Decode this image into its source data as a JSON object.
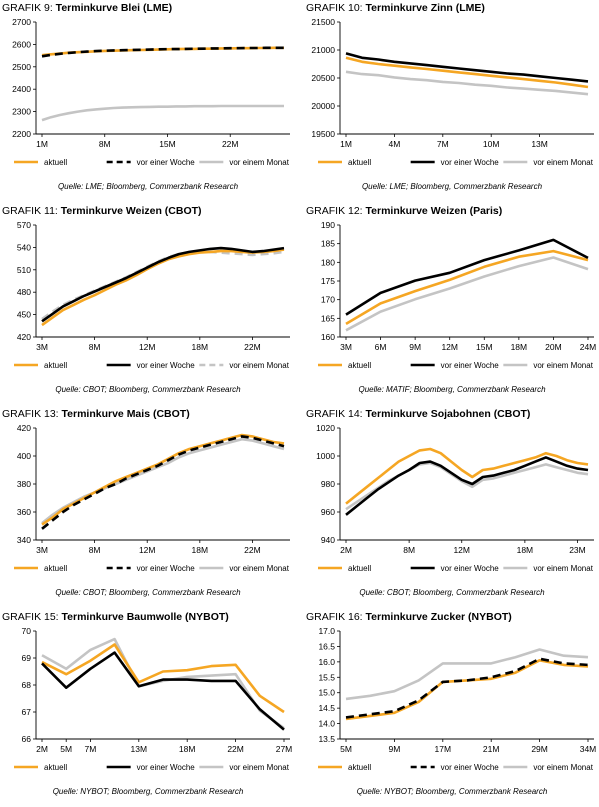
{
  "chart_data": [
    {
      "type": "line",
      "number": "GRAFIK 9:",
      "title": "Terminkurve Blei (LME)",
      "x": [
        "1M",
        "",
        "",
        "",
        "",
        "",
        "",
        "8M",
        "",
        "",
        "",
        "",
        "",
        "",
        "15M",
        "",
        "",
        "",
        "",
        "",
        "",
        "22M",
        "",
        "",
        "",
        "",
        "",
        ""
      ],
      "ylim": [
        2200,
        2700
      ],
      "yticks": [
        "2200",
        "2300",
        "2400",
        "2500",
        "2600",
        "2700"
      ],
      "series": [
        {
          "name": "aktuell",
          "color": "#f5a623",
          "dash": "solid",
          "values": [
            2552,
            2556,
            2559,
            2563,
            2565,
            2567,
            2569,
            2571,
            2572,
            2573,
            2574,
            2575,
            2576,
            2577,
            2578,
            2579,
            2580,
            2580,
            2581,
            2581,
            2582,
            2582,
            2583,
            2583,
            2584,
            2584,
            2585,
            2585
          ]
        },
        {
          "name": "vor einer Woche",
          "color": "#000000",
          "dash": "dashed",
          "values": [
            2547,
            2553,
            2558,
            2562,
            2565,
            2568,
            2570,
            2572,
            2573,
            2574,
            2575,
            2576,
            2577,
            2578,
            2579,
            2579,
            2580,
            2581,
            2581,
            2582,
            2582,
            2583,
            2583,
            2584,
            2584,
            2585,
            2585,
            2585
          ]
        },
        {
          "name": "vor einem Monat",
          "color": "#c4c4c4",
          "dash": "solid",
          "values": [
            2262,
            2275,
            2285,
            2293,
            2300,
            2306,
            2310,
            2313,
            2316,
            2318,
            2319,
            2320,
            2321,
            2322,
            2322,
            2323,
            2323,
            2324,
            2324,
            2324,
            2325,
            2325,
            2325,
            2325,
            2325,
            2325,
            2325,
            2325
          ]
        }
      ],
      "source": "Quelle: LME; Bloomberg, Commerzbank Research"
    },
    {
      "type": "line",
      "number": "GRAFIK 10:",
      "title": "Terminkurve Zinn (LME)",
      "x": [
        "1M",
        "",
        "",
        "4M",
        "",
        "",
        "7M",
        "",
        "",
        "10M",
        "",
        "",
        "13M",
        "",
        "",
        ""
      ],
      "ylim": [
        19500,
        21500
      ],
      "yticks": [
        "19500",
        "20000",
        "20500",
        "21000",
        "21500"
      ],
      "series": [
        {
          "name": "aktuell",
          "color": "#f5a623",
          "dash": "solid",
          "values": [
            20860,
            20790,
            20750,
            20720,
            20690,
            20660,
            20630,
            20600,
            20570,
            20540,
            20510,
            20480,
            20450,
            20420,
            20380,
            20340
          ]
        },
        {
          "name": "vor einer Woche",
          "color": "#000000",
          "dash": "solid",
          "values": [
            20940,
            20860,
            20830,
            20790,
            20760,
            20730,
            20700,
            20670,
            20640,
            20610,
            20580,
            20560,
            20530,
            20500,
            20470,
            20440
          ]
        },
        {
          "name": "vor einem Monat",
          "color": "#c4c4c4",
          "dash": "solid",
          "values": [
            20610,
            20570,
            20550,
            20510,
            20480,
            20460,
            20430,
            20410,
            20380,
            20360,
            20330,
            20310,
            20290,
            20270,
            20240,
            20210
          ]
        }
      ],
      "source": "Quelle: LME; Bloomberg, Commerzbank Research"
    },
    {
      "type": "line",
      "number": "GRAFIK 11:",
      "title": "Terminkurve Weizen (CBOT)",
      "x": [
        "3M",
        "",
        "",
        "",
        "",
        "8M",
        "",
        "",
        "",
        "",
        "12M",
        "",
        "",
        "",
        "",
        "18M",
        "",
        "",
        "",
        "",
        "22M",
        "",
        "",
        ""
      ],
      "ylim": [
        420,
        570
      ],
      "yticks": [
        "420",
        "450",
        "480",
        "510",
        "540",
        "570"
      ],
      "series": [
        {
          "name": "aktuell",
          "color": "#f5a623",
          "dash": "solid",
          "values": [
            436,
            446,
            456,
            463,
            470,
            476,
            483,
            490,
            496,
            503,
            511,
            518,
            524,
            528,
            531,
            533,
            534,
            535,
            535,
            534,
            533,
            534,
            535,
            537
          ]
        },
        {
          "name": "vor einer Woche",
          "color": "#000000",
          "dash": "solid",
          "values": [
            441,
            451,
            461,
            468,
            475,
            481,
            487,
            493,
            499,
            506,
            513,
            520,
            526,
            531,
            534,
            536,
            538,
            539,
            538,
            536,
            534,
            535,
            537,
            539
          ]
        },
        {
          "name": "vor einem Monat",
          "color": "#c4c4c4",
          "dash": "dashed",
          "values": [
            444,
            454,
            463,
            470,
            476,
            482,
            488,
            494,
            500,
            507,
            514,
            521,
            527,
            531,
            533,
            534,
            534,
            533,
            532,
            531,
            530,
            531,
            532,
            534
          ]
        }
      ],
      "source": "Quelle: CBOT; Bloomberg, Commerzbank Research"
    },
    {
      "type": "line",
      "number": "GRAFIK 12:",
      "title": "Terminkurve Weizen (Paris)",
      "x": [
        "3M",
        "6M",
        "9M",
        "12M",
        "15M",
        "18M",
        "20M",
        "24M"
      ],
      "ylim": [
        160,
        190
      ],
      "yticks": [
        "160",
        "165",
        "170",
        "175",
        "180",
        "185",
        "190"
      ],
      "series": [
        {
          "name": "aktuell",
          "color": "#f5a623",
          "dash": "solid",
          "values": [
            163.5,
            169,
            172.3,
            175.3,
            178.8,
            181.5,
            183,
            180.6
          ]
        },
        {
          "name": "vor einer Woche",
          "color": "#000000",
          "dash": "solid",
          "values": [
            166,
            171.8,
            175.1,
            177.2,
            180.6,
            183.2,
            186,
            181.2
          ]
        },
        {
          "name": "vor einem Monat",
          "color": "#c4c4c4",
          "dash": "solid",
          "values": [
            161.8,
            166.8,
            170.1,
            173,
            176.2,
            179,
            181.3,
            178.2
          ]
        }
      ],
      "source": "Quelle: MATIF; Bloomberg, Commerzbank Research"
    },
    {
      "type": "line",
      "number": "GRAFIK 13:",
      "title": "Terminkurve Mais (CBOT)",
      "x": [
        "3M",
        "",
        "",
        "",
        "",
        "8M",
        "",
        "",
        "",
        "",
        "12M",
        "",
        "",
        "",
        "",
        "18M",
        "",
        "",
        "",
        "",
        "22M",
        "",
        "",
        ""
      ],
      "ylim": [
        340,
        420
      ],
      "yticks": [
        "340",
        "360",
        "380",
        "400",
        "420"
      ],
      "series": [
        {
          "name": "aktuell",
          "color": "#f5a623",
          "dash": "solid",
          "values": [
            351,
            356,
            362,
            366,
            370,
            374,
            378,
            382,
            385,
            388,
            391,
            394,
            398,
            402,
            405,
            407,
            409,
            411,
            413,
            415,
            414,
            412,
            410,
            409
          ]
        },
        {
          "name": "vor einer Woche",
          "color": "#000000",
          "dash": "dashed",
          "values": [
            348,
            354,
            360,
            365,
            369,
            373,
            377,
            380,
            384,
            387,
            390,
            393,
            397,
            401,
            404,
            406,
            408,
            410,
            412,
            414,
            413,
            411,
            409,
            407
          ]
        },
        {
          "name": "vor einem Monat",
          "color": "#c4c4c4",
          "dash": "solid",
          "values": [
            352,
            358,
            363,
            367,
            371,
            374,
            377,
            380,
            383,
            386,
            389,
            392,
            395,
            399,
            402,
            404,
            406,
            408,
            410,
            412,
            411,
            409,
            407,
            405
          ]
        }
      ],
      "source": "Quelle: CBOT; Bloomberg, Commerzbank Research"
    },
    {
      "type": "line",
      "number": "GRAFIK 14:",
      "title": "Terminkurve Sojabohnen (CBOT)",
      "x": [
        "2M",
        "",
        "",
        "",
        "",
        "",
        "8M",
        "",
        "",
        "",
        "",
        "12M",
        "",
        "",
        "",
        "",
        "",
        "18M",
        "",
        "",
        "",
        "",
        "23M",
        ""
      ],
      "ylim": [
        940,
        1020
      ],
      "yticks": [
        "940",
        "960",
        "980",
        "1000",
        "1020"
      ],
      "series": [
        {
          "name": "aktuell",
          "color": "#f5a623",
          "dash": "solid",
          "values": [
            966,
            972,
            978,
            984,
            990,
            996,
            1000,
            1004,
            1005,
            1002,
            996,
            990,
            985,
            990,
            991,
            993,
            995,
            997,
            999,
            1002,
            1000,
            997,
            995,
            994
          ]
        },
        {
          "name": "vor einer Woche",
          "color": "#000000",
          "dash": "solid",
          "values": [
            958,
            964,
            970,
            976,
            981,
            986,
            990,
            995,
            996,
            993,
            988,
            983,
            980,
            985,
            986,
            988,
            990,
            993,
            996,
            999,
            996,
            993,
            991,
            990
          ]
        },
        {
          "name": "vor einem Monat",
          "color": "#c4c4c4",
          "dash": "solid",
          "values": [
            962,
            967,
            972,
            977,
            982,
            986,
            990,
            994,
            995,
            992,
            987,
            982,
            978,
            983,
            984,
            986,
            988,
            990,
            992,
            994,
            992,
            990,
            988,
            987
          ]
        }
      ],
      "source": "Quelle: CBOT; Bloomberg, Commerzbank Research"
    },
    {
      "type": "line",
      "number": "GRAFIK 15:",
      "title": "Terminkurve Baumwolle (NYBOT)",
      "x": [
        "2M",
        "5M",
        "7M",
        "",
        "13M",
        "",
        "18M",
        "",
        "22M",
        "",
        "27M"
      ],
      "ylim": [
        66,
        70
      ],
      "yticks": [
        "66",
        "67",
        "68",
        "69",
        "70"
      ],
      "series": [
        {
          "name": "aktuell",
          "color": "#f5a623",
          "dash": "solid",
          "values": [
            68.85,
            68.4,
            68.9,
            69.5,
            68.1,
            68.5,
            68.55,
            68.7,
            68.75,
            67.6,
            67
          ]
        },
        {
          "name": "vor einer Woche",
          "color": "#000000",
          "dash": "solid",
          "values": [
            68.8,
            67.9,
            68.6,
            69.2,
            67.95,
            68.2,
            68.2,
            68.15,
            68.15,
            67.1,
            66.35
          ]
        },
        {
          "name": "vor einem Monat",
          "color": "#c4c4c4",
          "dash": "solid",
          "values": [
            69.1,
            68.6,
            69.3,
            69.7,
            67.95,
            68.15,
            68.3,
            68.35,
            68.4,
            67.05,
            66.4
          ]
        }
      ],
      "source": "Quelle: NYBOT; Bloomberg, Commerzbank Research"
    },
    {
      "type": "line",
      "number": "GRAFIK 16:",
      "title": "Terminkurve Zucker (NYBOT)",
      "x": [
        "5M",
        "",
        "9M",
        "",
        "17M",
        "",
        "21M",
        "",
        "29M",
        "",
        "34M"
      ],
      "ylim": [
        13.5,
        17.0
      ],
      "yticks": [
        "13.5",
        "14.0",
        "14.5",
        "15.0",
        "15.5",
        "16.0",
        "16.5",
        "17.0"
      ],
      "series": [
        {
          "name": "aktuell",
          "color": "#f5a623",
          "dash": "solid",
          "values": [
            14.15,
            14.25,
            14.35,
            14.7,
            15.35,
            15.4,
            15.45,
            15.65,
            16.05,
            15.9,
            15.85
          ]
        },
        {
          "name": "vor einer Woche",
          "color": "#000000",
          "dash": "dashed",
          "values": [
            14.2,
            14.3,
            14.4,
            14.75,
            15.35,
            15.4,
            15.5,
            15.7,
            16.1,
            15.95,
            15.9
          ]
        },
        {
          "name": "vor einem Monat",
          "color": "#c4c4c4",
          "dash": "solid",
          "values": [
            14.8,
            14.9,
            15.05,
            15.4,
            15.95,
            15.95,
            15.95,
            16.15,
            16.4,
            16.2,
            16.15
          ]
        }
      ],
      "source": "Quelle: NYBOT; Bloomberg, Commerzbank Research"
    }
  ]
}
